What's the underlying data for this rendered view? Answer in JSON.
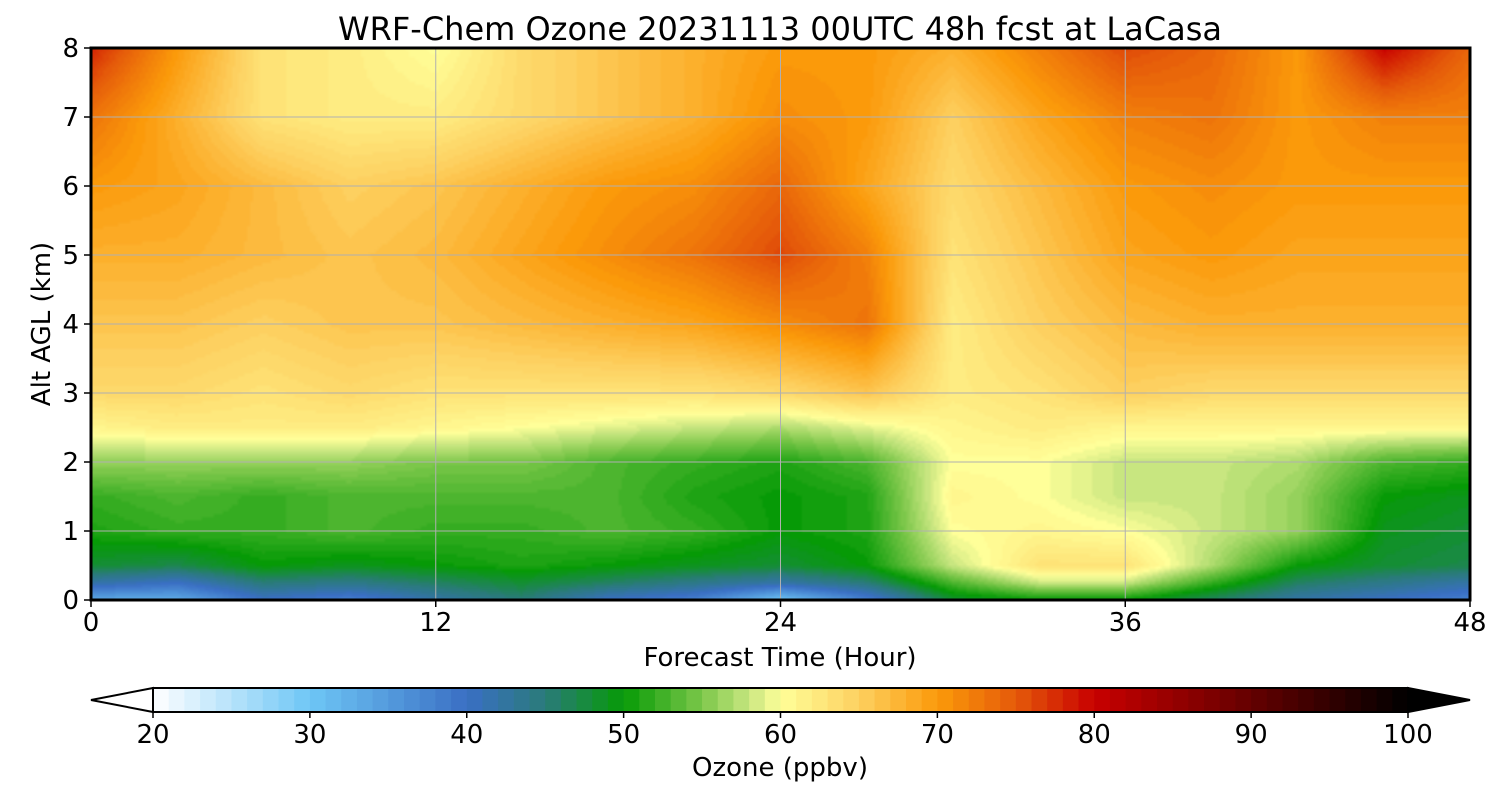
{
  "chart_data": {
    "type": "heatmap",
    "title": "WRF-Chem Ozone  20231113 00UTC 48h fcst at LaCasa",
    "xlabel": "Forecast Time (Hour)",
    "ylabel": "Alt AGL (km)",
    "xlim": [
      0,
      48
    ],
    "ylim": [
      0,
      8
    ],
    "xticks": [
      0,
      12,
      24,
      36,
      48
    ],
    "yticks": [
      0,
      1,
      2,
      3,
      4,
      5,
      6,
      7,
      8
    ],
    "grid": true,
    "x": [
      0,
      3,
      6,
      9,
      12,
      15,
      18,
      21,
      24,
      27,
      30,
      33,
      36,
      39,
      42,
      45,
      48
    ],
    "y": [
      0,
      0.25,
      0.5,
      1,
      1.5,
      2,
      2.5,
      3,
      4,
      5,
      6,
      7,
      8
    ],
    "values": [
      [
        33,
        33,
        40,
        38,
        42,
        45,
        40,
        38,
        30,
        38,
        48,
        50,
        50,
        46,
        42,
        40,
        38
      ],
      [
        42,
        40,
        45,
        44,
        46,
        48,
        46,
        44,
        42,
        45,
        53,
        58,
        58,
        52,
        46,
        44,
        42
      ],
      [
        48,
        47,
        50,
        49,
        50,
        51,
        50,
        49,
        48,
        50,
        58,
        63,
        63,
        57,
        50,
        48,
        47
      ],
      [
        51,
        52,
        52,
        53,
        52,
        52,
        53,
        52,
        50,
        51,
        60,
        61,
        60,
        58,
        56,
        49,
        48
      ],
      [
        52,
        53,
        52,
        53,
        53,
        53,
        53,
        51,
        50,
        51,
        61,
        60,
        58,
        58,
        56,
        50,
        49
      ],
      [
        56,
        56,
        56,
        56,
        55,
        55,
        53,
        52,
        51,
        53,
        60,
        60,
        58,
        58,
        57,
        53,
        52
      ],
      [
        61,
        62,
        62,
        62,
        61,
        60,
        59,
        58,
        57,
        59,
        61,
        62,
        61,
        61,
        61,
        61,
        61
      ],
      [
        64,
        64,
        63,
        64,
        63,
        63,
        63,
        63,
        64,
        66,
        62,
        63,
        65,
        64,
        64,
        64,
        64
      ],
      [
        66,
        66,
        65,
        66,
        66,
        67,
        68,
        69,
        71,
        73,
        62,
        65,
        67,
        68,
        68,
        68,
        68
      ],
      [
        68,
        68,
        67,
        66,
        67,
        69,
        71,
        73,
        76,
        72,
        63,
        66,
        69,
        70,
        69,
        69,
        69
      ],
      [
        70,
        69,
        67,
        65,
        66,
        68,
        70,
        71,
        74,
        69,
        64,
        67,
        70,
        71,
        70,
        70,
        70
      ],
      [
        73,
        68,
        63,
        62,
        62,
        64,
        66,
        68,
        71,
        70,
        65,
        69,
        72,
        73,
        70,
        72,
        72
      ],
      [
        78,
        70,
        63,
        62,
        60,
        64,
        66,
        68,
        70,
        70,
        68,
        72,
        76,
        74,
        70,
        80,
        74
      ]
    ],
    "colorbar": {
      "label": "Ozone  (ppbv)",
      "min": 20,
      "max": 100,
      "ticks": [
        20,
        30,
        40,
        50,
        60,
        70,
        80,
        90,
        100
      ],
      "extend": "both",
      "colors": [
        {
          "value": 20,
          "color": "#ffffff"
        },
        {
          "value": 30,
          "color": "#6ec6f5"
        },
        {
          "value": 40,
          "color": "#3a6fc4"
        },
        {
          "value": 45,
          "color": "#2a7b7a"
        },
        {
          "value": 50,
          "color": "#069a06"
        },
        {
          "value": 55,
          "color": "#7cc74a"
        },
        {
          "value": 58,
          "color": "#c8e680"
        },
        {
          "value": 60,
          "color": "#ffff99"
        },
        {
          "value": 65,
          "color": "#fdd060"
        },
        {
          "value": 70,
          "color": "#fb9a0a"
        },
        {
          "value": 75,
          "color": "#e55a0a"
        },
        {
          "value": 80,
          "color": "#c80000"
        },
        {
          "value": 90,
          "color": "#640000"
        },
        {
          "value": 100,
          "color": "#000000"
        }
      ]
    }
  }
}
